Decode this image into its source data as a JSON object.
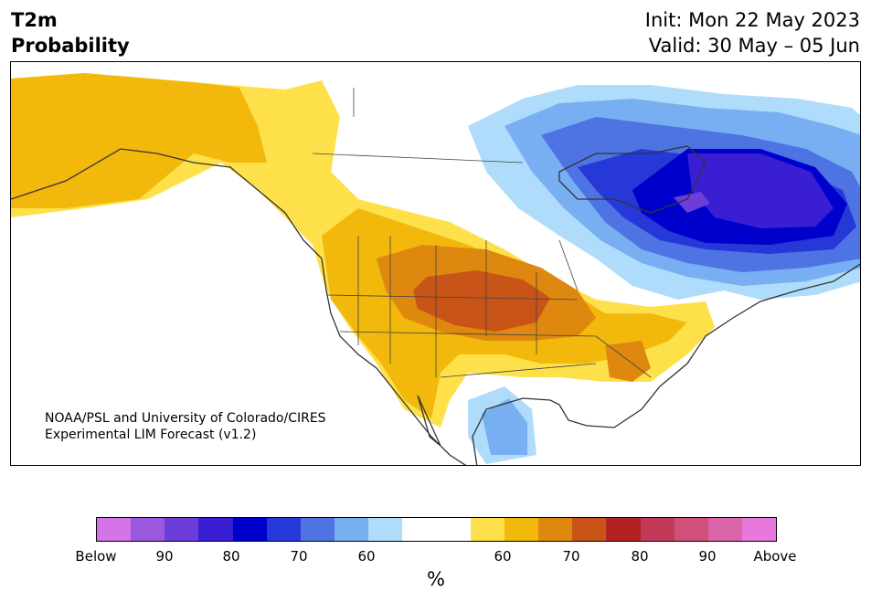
{
  "header": {
    "variable": "T2m",
    "product": "Probability",
    "init": "Init: Mon 22 May 2023",
    "valid": "Valid: 30 May – 05 Jun"
  },
  "credit": {
    "line1": "NOAA/PSL and University of Colorado/CIRES",
    "line2": "Experimental LIM Forecast (v1.2)"
  },
  "colorbar": {
    "colors": [
      "#d474e8",
      "#9b58de",
      "#6c3dd8",
      "#3a1ed3",
      "#0000cc",
      "#2638d8",
      "#4e74e4",
      "#78aef2",
      "#aedcfa",
      "#ffffff",
      "#ffffff",
      "#fee04a",
      "#f2b80c",
      "#de8810",
      "#c85418",
      "#b22222",
      "#c23a58",
      "#d0507a",
      "#dc64a8",
      "#e878dc"
    ],
    "tick_labels": [
      "Below",
      "90",
      "80",
      "70",
      "60",
      "60",
      "70",
      "80",
      "90",
      "Above"
    ],
    "unit": "%"
  },
  "map": {
    "region": "North America",
    "palette": {
      "above_60": "#fee04a",
      "above_65": "#f2b80c",
      "above_70": "#de8810",
      "above_75": "#c85418",
      "below_60": "#aedcfa",
      "below_65": "#78aef2",
      "below_70": "#4e74e4",
      "below_75": "#2638d8",
      "below_80": "#0000cc",
      "below_85": "#3a1ed3",
      "below_90": "#6c3dd8"
    }
  }
}
